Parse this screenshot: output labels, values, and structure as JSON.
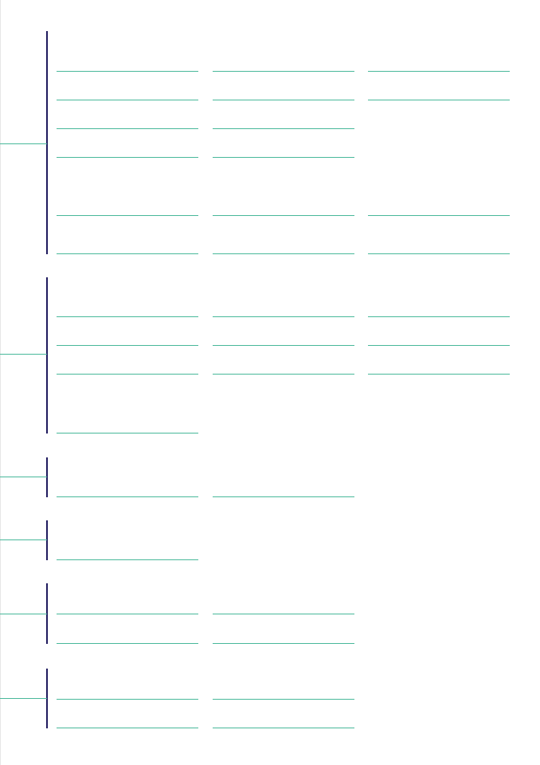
{
  "colors": {
    "bracket": "#1f1a5e",
    "field_underline": "#48b89a",
    "page_background": "#ffffff"
  },
  "form_groups": [
    {
      "name": "group-1",
      "sections": [
        {
          "rows": 4,
          "cols_per_row": [
            3,
            2,
            2,
            2
          ]
        },
        {
          "rows": 2,
          "cols_per_row": [
            3,
            3
          ]
        }
      ]
    },
    {
      "name": "group-2",
      "sections": [
        {
          "rows": 3,
          "cols_per_row": [
            3,
            3,
            3
          ]
        },
        {
          "rows": 1,
          "cols_per_row": [
            1
          ]
        }
      ]
    },
    {
      "name": "group-3",
      "sections": [
        {
          "rows": 1,
          "cols_per_row": [
            2
          ]
        }
      ]
    },
    {
      "name": "group-4",
      "sections": [
        {
          "rows": 1,
          "cols_per_row": [
            1
          ]
        }
      ]
    },
    {
      "name": "group-5",
      "sections": [
        {
          "rows": 2,
          "cols_per_row": [
            2,
            2
          ]
        }
      ]
    },
    {
      "name": "group-6",
      "sections": [
        {
          "rows": 2,
          "cols_per_row": [
            2,
            2
          ]
        }
      ]
    }
  ]
}
